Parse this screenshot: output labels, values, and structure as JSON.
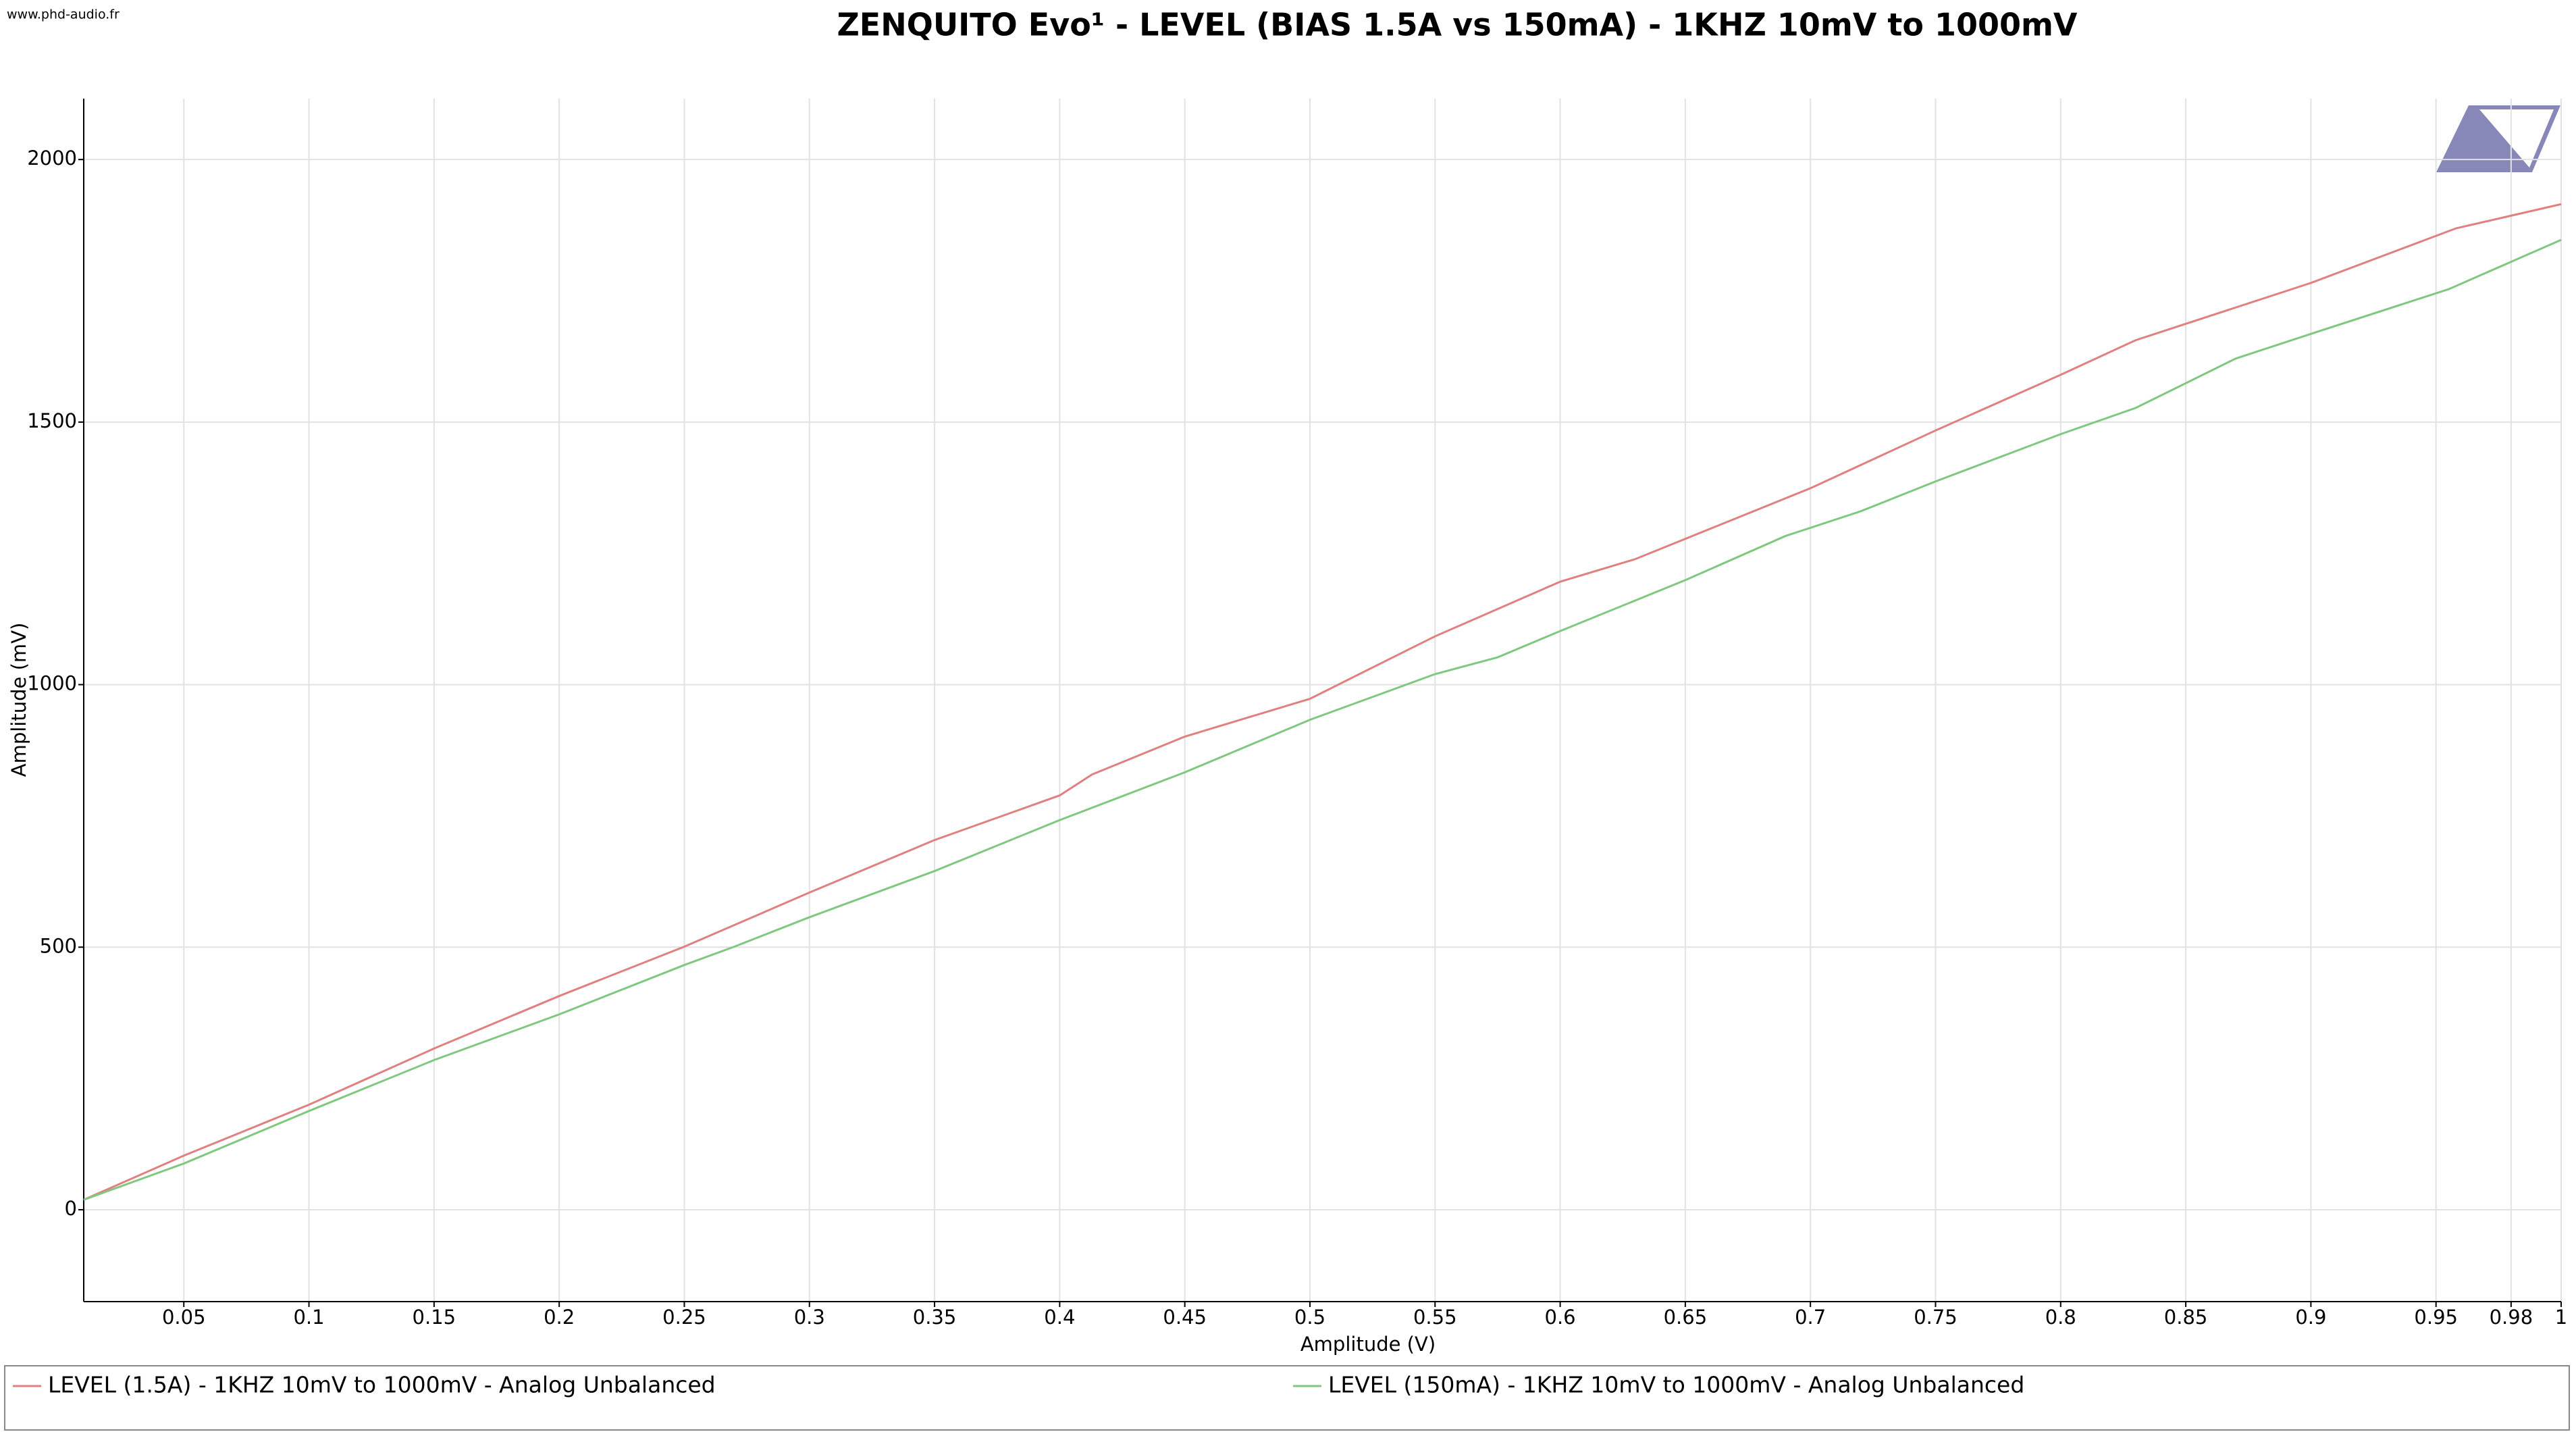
{
  "chart_data": {
    "type": "line",
    "title": "ZENQUITO Evo¹ - LEVEL (BIAS 1.5A vs 150mA) - 1KHZ 10mV to 1000mV",
    "watermark": "www.phd-audio.fr",
    "x_label": "Amplitude (V)",
    "y_label": "Amplitude (mV)",
    "xlim": [
      0.01,
      1
    ],
    "ylim": [
      -175,
      2116
    ],
    "xticks": [
      0.05,
      0.1,
      0.15,
      0.2,
      0.25,
      0.3,
      0.35,
      0.4,
      0.45,
      0.5,
      0.55,
      0.6,
      0.65,
      0.7,
      0.75,
      0.8,
      0.85,
      0.9,
      0.95,
      0.98,
      1
    ],
    "yticks": [
      0,
      500,
      1000,
      1500,
      2000
    ],
    "grid": true,
    "legend": "bottom",
    "series": [
      {
        "name": "LEVEL (1.5A) - 1KHZ 10mV to 1000mV - Analog Unbalanced",
        "color": "#e08080",
        "x": [
          0.01,
          0.05,
          0.1,
          0.15,
          0.2,
          0.25,
          0.3,
          0.35,
          0.4,
          0.413,
          0.45,
          0.5,
          0.55,
          0.6,
          0.63,
          0.7,
          0.75,
          0.8,
          0.83,
          0.9,
          0.958,
          1
        ],
        "values": [
          19,
          103,
          200,
          307,
          407,
          501,
          604,
          704,
          789,
          829,
          901,
          973,
          1092,
          1196,
          1239,
          1374,
          1484,
          1590,
          1656,
          1765,
          1869,
          1915
        ]
      },
      {
        "name": "LEVEL (150mA) - 1KHZ 10mV to 1000mV -  Analog Unbalanced",
        "color": "#80c880",
        "x": [
          0.01,
          0.05,
          0.1,
          0.15,
          0.2,
          0.25,
          0.27,
          0.3,
          0.35,
          0.4,
          0.45,
          0.5,
          0.55,
          0.575,
          0.6,
          0.65,
          0.69,
          0.72,
          0.75,
          0.8,
          0.83,
          0.87,
          0.9,
          0.955,
          1
        ],
        "values": [
          19,
          88,
          188,
          285,
          372,
          466,
          501,
          557,
          645,
          742,
          833,
          933,
          1020,
          1052,
          1102,
          1199,
          1283,
          1330,
          1387,
          1477,
          1527,
          1621,
          1668,
          1753,
          1847
        ]
      }
    ]
  }
}
